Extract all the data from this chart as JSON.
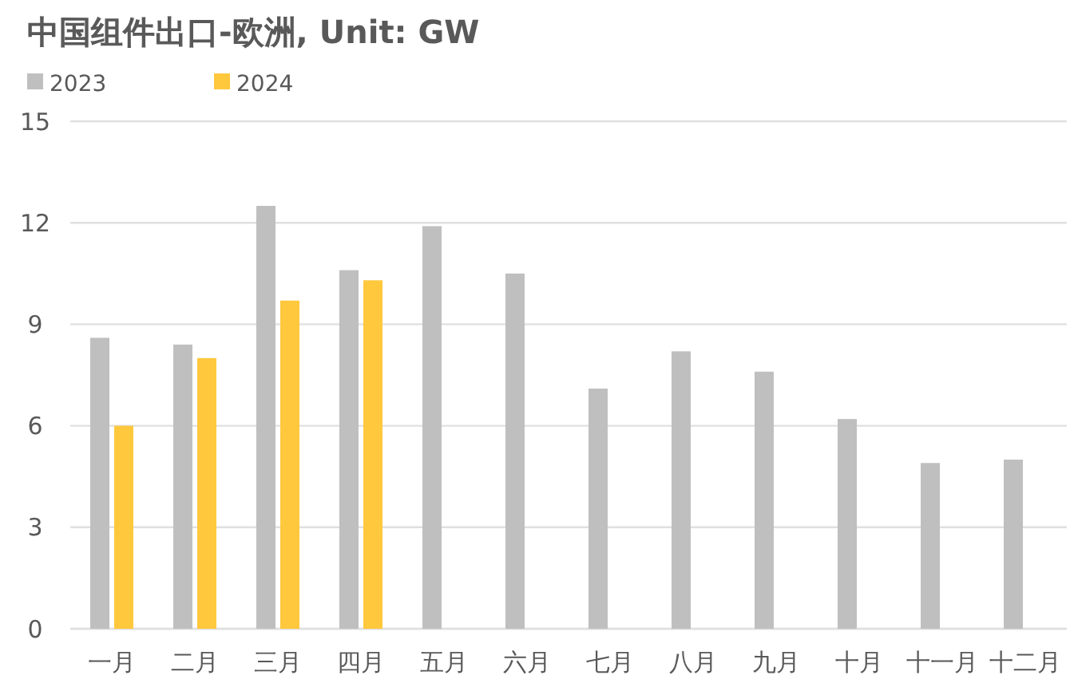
{
  "chart_data": {
    "type": "bar",
    "title": "中国组件出口-欧洲, Unit: GW",
    "categories": [
      "一月",
      "二月",
      "三月",
      "四月",
      "五月",
      "六月",
      "七月",
      "八月",
      "九月",
      "十月",
      "十一月",
      "十二月"
    ],
    "series": [
      {
        "name": "2023",
        "color": "#bfbfbf",
        "values": [
          8.6,
          8.4,
          12.5,
          10.6,
          11.9,
          10.5,
          7.1,
          8.2,
          7.6,
          6.2,
          4.9,
          5.0
        ]
      },
      {
        "name": "2024",
        "color": "#ffc83d",
        "values": [
          6.0,
          8.0,
          9.7,
          10.3,
          null,
          null,
          null,
          null,
          null,
          null,
          null,
          null
        ]
      }
    ],
    "ylim": [
      0,
      15
    ],
    "yticks": [
      0,
      3,
      6,
      9,
      12,
      15
    ],
    "grid": "y",
    "legend": "top left"
  }
}
